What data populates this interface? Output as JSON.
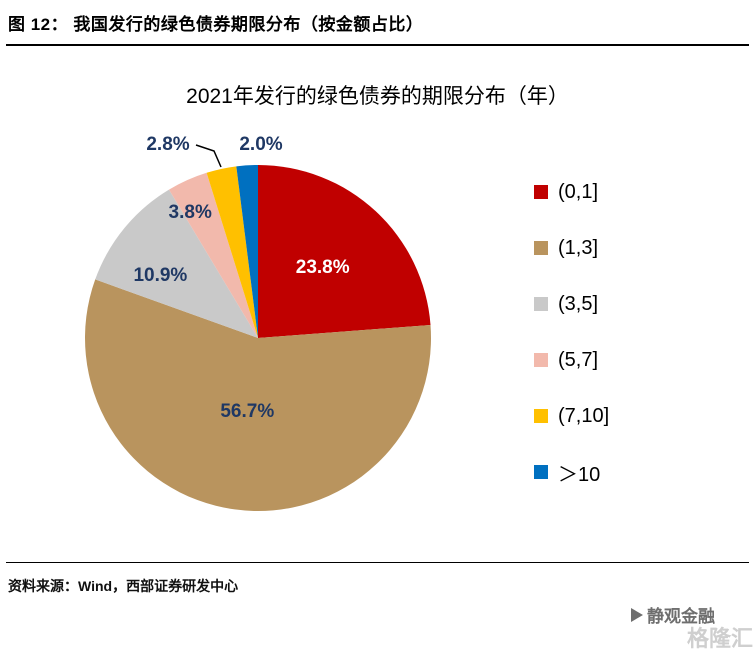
{
  "header": {
    "caption": "图 12：  我国发行的绿色债券期限分布（按金额占比）"
  },
  "chart_data": {
    "type": "pie",
    "title": "2021年发行的绿色债券的期限分布（年）",
    "unit": "percent",
    "start_angle_deg": 0,
    "direction": "clockwise",
    "legend_position": "right",
    "labels": [
      "(0,1]",
      "(1,3]",
      "(3,5]",
      "(5,7]",
      "(7,10]",
      "＞10"
    ],
    "values": [
      23.8,
      56.7,
      10.9,
      3.8,
      2.8,
      2.0
    ],
    "value_labels": [
      "23.8%",
      "56.7%",
      "10.9%",
      "3.8%",
      "2.8%",
      "2.0%"
    ],
    "colors": [
      "#C00000",
      "#B9945E",
      "#C9C9C9",
      "#F2B9AC",
      "#FFC000",
      "#0070C0"
    ],
    "inside_label_color": "#1F3864",
    "first_slice_label_color": "#FFFFFF"
  },
  "footer": {
    "source": "资料来源：Wind，西部证券研发中心"
  },
  "watermark": {
    "front": "静观金融",
    "back": "格隆汇"
  }
}
